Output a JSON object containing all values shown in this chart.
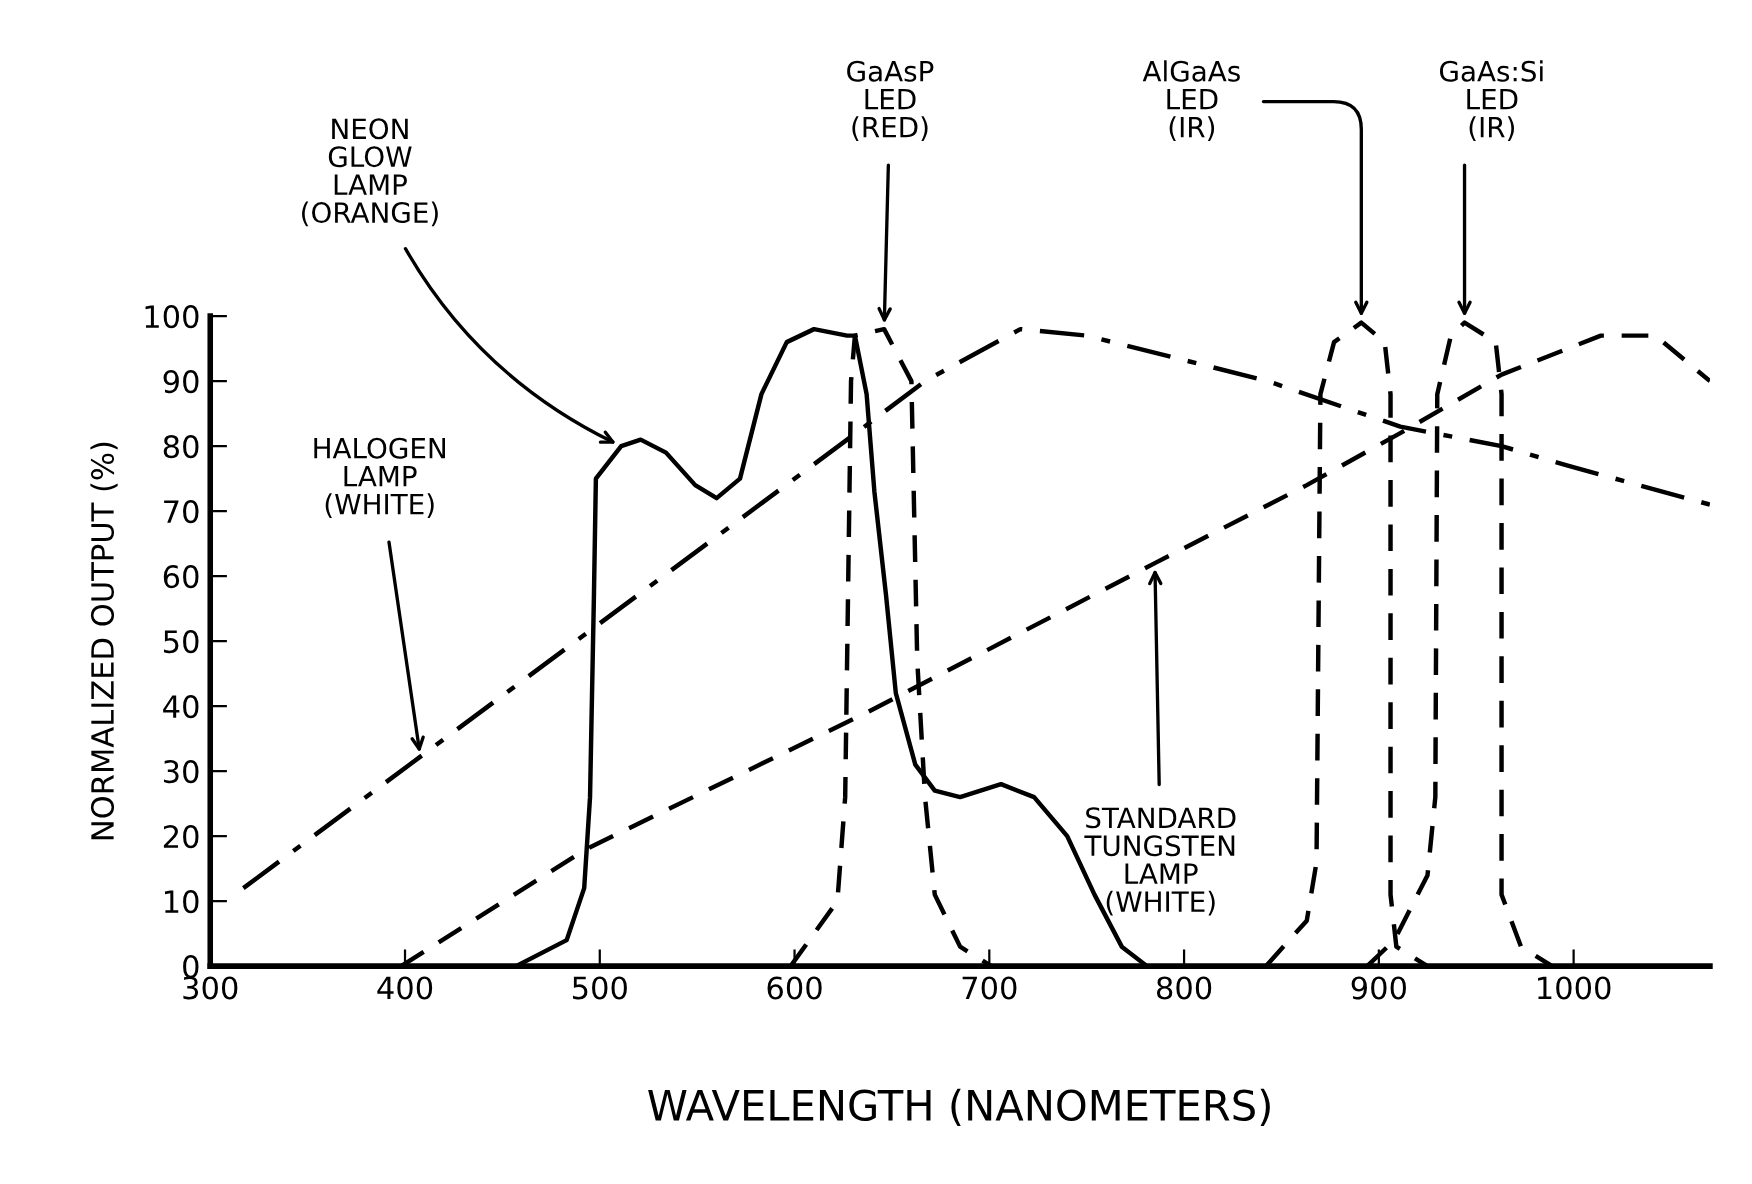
{
  "chart_data": {
    "type": "line",
    "xlabel": "WAVELENGTH (NANOMETERS)",
    "ylabel": "NORMALIZED OUTPUT (%)",
    "xlim": [
      300,
      1070
    ],
    "ylim": [
      0,
      100
    ],
    "xticks": [
      300,
      400,
      500,
      600,
      700,
      800,
      900,
      1000
    ],
    "yticks": [
      0,
      10,
      20,
      30,
      40,
      50,
      60,
      70,
      80,
      90,
      100
    ],
    "grid": false,
    "legend": false,
    "marker": "none",
    "series": [
      {
        "color": "#000000",
        "line_style": "solid",
        "x": [
          457,
          483,
          492,
          495,
          497,
          498,
          511,
          521,
          534,
          549,
          560,
          572,
          583,
          596,
          610,
          627,
          631,
          637,
          641,
          647,
          652,
          662,
          672,
          685,
          706,
          723,
          740,
          754,
          768,
          781,
          790
        ],
        "values": [
          0,
          4,
          12,
          26,
          57,
          75,
          80,
          81,
          79,
          74,
          72,
          75,
          88,
          96,
          98,
          97,
          97,
          88,
          73,
          57,
          42,
          31,
          27,
          26,
          28,
          26,
          20,
          11,
          3,
          0,
          0
        ]
      },
      {
        "color": "#000000",
        "line_style": "dashdot",
        "x": [
          317,
          627,
          667,
          716,
          750,
          843,
          911,
          963,
          997,
          1070
        ],
        "values": [
          12,
          81,
          90,
          98,
          97,
          90,
          83,
          80,
          77,
          71
        ]
      },
      {
        "color": "#000000",
        "line_style": "dashed",
        "x": [
          398,
          493,
          637,
          785,
          863,
          911,
          963,
          1014,
          1042,
          1070
        ],
        "values": [
          0,
          18,
          39,
          62,
          74,
          82,
          91,
          97,
          97,
          90
        ]
      },
      {
        "color": "#000000",
        "line_style": "dashed",
        "x": [
          598,
          622,
          626,
          629,
          631,
          646,
          660,
          663,
          667,
          672,
          685,
          701
        ],
        "values": [
          0,
          10,
          26,
          90,
          97,
          98,
          90,
          47,
          26,
          11,
          3,
          0
        ]
      },
      {
        "color": "#000000",
        "line_style": "dashed",
        "x": [
          842,
          863,
          868,
          870,
          877,
          891,
          903,
          906,
          906,
          909,
          925
        ],
        "values": [
          0,
          7,
          16,
          88,
          96,
          99,
          96,
          88,
          11,
          3,
          0
        ]
      },
      {
        "color": "#000000",
        "line_style": "dashed",
        "x": [
          894,
          908,
          925,
          929,
          930,
          937,
          944,
          960,
          963,
          963,
          973,
          989
        ],
        "values": [
          0,
          4,
          14,
          26,
          88,
          97,
          99,
          96,
          88,
          11,
          3,
          0
        ]
      }
    ],
    "annotations": [
      {
        "text": "NEON\nGLOW\nLAMP\n(ORANGE)",
        "x": 511,
        "y": 80
      },
      {
        "text": "HALOGEN\nLAMP\n(WHITE)",
        "x": 408,
        "y": 32
      },
      {
        "text": "STANDARD\nTUNGSTEN\nLAMP\n(WHITE)",
        "x": 785,
        "y": 62
      },
      {
        "text": "GaAsP\nLED\n(RED)",
        "x": 646,
        "y": 98
      },
      {
        "text": "AlGaAs\nLED\n(IR)",
        "x": 891,
        "y": 99
      },
      {
        "text": "GaAs:Si\nLED\n(IR)",
        "x": 944,
        "y": 99
      }
    ]
  }
}
